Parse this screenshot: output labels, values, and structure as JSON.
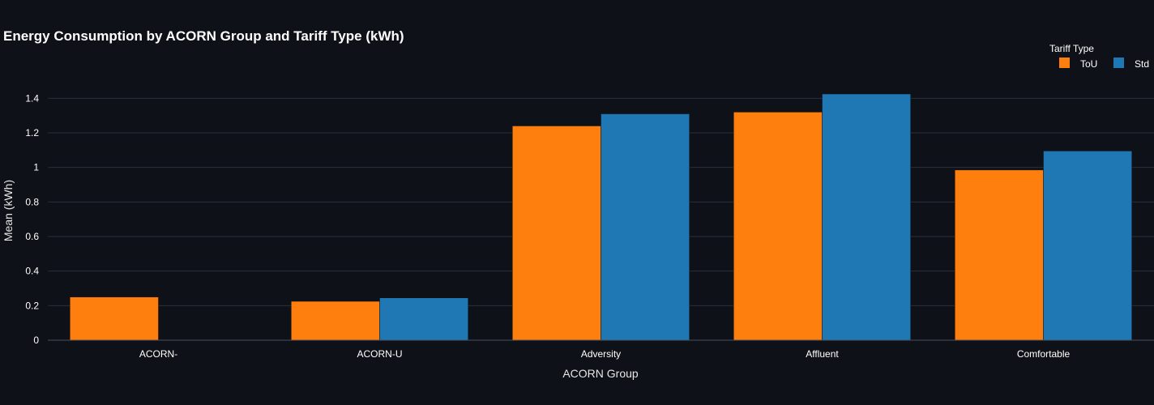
{
  "chart_data": {
    "type": "bar",
    "title": "Energy Consumption by ACORN Group and Tariff Type (kWh)",
    "xlabel": "ACORN Group",
    "ylabel": "Mean (kWh)",
    "categories": [
      "ACORN-",
      "ACORN-U",
      "Adversity",
      "Affluent",
      "Comfortable"
    ],
    "series": [
      {
        "name": "ToU",
        "color": "#ff7f0e",
        "values": [
          0.25,
          0.225,
          1.24,
          1.32,
          0.985
        ]
      },
      {
        "name": "Std",
        "color": "#1f77b4",
        "values": [
          null,
          0.245,
          1.31,
          1.425,
          1.095
        ]
      }
    ],
    "ylim": [
      0,
      1.5
    ],
    "yticks": [
      0,
      0.2,
      0.4,
      0.6,
      0.8,
      1,
      1.2,
      1.4
    ],
    "ytick_labels": [
      "0",
      "0.2",
      "0.4",
      "0.6",
      "0.8",
      "1",
      "1.2",
      "1.4"
    ],
    "grid": true,
    "legend": {
      "title": "Tariff Type",
      "placement": "top-right"
    }
  }
}
